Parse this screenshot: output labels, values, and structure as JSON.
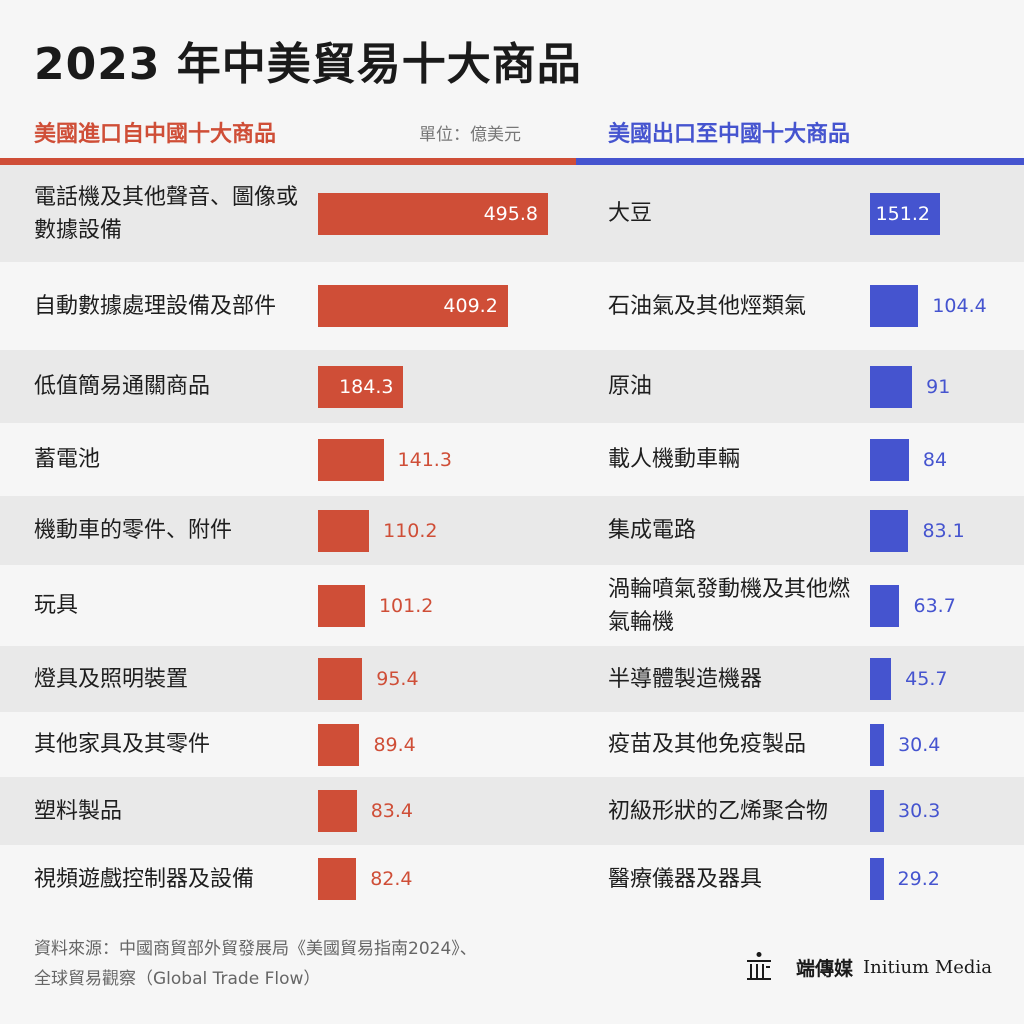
{
  "colors": {
    "import": "#cf4e37",
    "export": "#4554cf"
  },
  "title": "2023 年中美貿易十大商品",
  "unit": "單位：億美元",
  "chart_data": [
    {
      "type": "bar",
      "title": "美國進口自中國十大商品",
      "categories": [
        "電話機及其他聲音、圖像或數據設備",
        "自動數據處理設備及部件",
        "低值簡易通關商品",
        "蓄電池",
        "機動車的零件、附件",
        "玩具",
        "燈具及照明裝置",
        "其他家具及其零件",
        "塑料製品",
        "視頻遊戲控制器及設備"
      ],
      "values": [
        495.8,
        409.2,
        184.3,
        141.3,
        110.2,
        101.2,
        95.4,
        89.4,
        83.4,
        82.4
      ],
      "value_labels": [
        "495.8",
        "409.2",
        "184.3",
        "141.3",
        "110.2",
        "101.2",
        "95.4",
        "89.4",
        "83.4",
        "82.4"
      ],
      "orientation": "horizontal",
      "color": "#cf4e37"
    },
    {
      "type": "bar",
      "title": "美國出口至中國十大商品",
      "categories": [
        "大豆",
        "石油氣及其他烴類氣",
        "原油",
        "載人機動車輛",
        "集成電路",
        "渦輪噴氣發動機及其他燃氣輪機",
        "半導體製造機器",
        "疫苗及其他免疫製品",
        "初級形狀的乙烯聚合物",
        "醫療儀器及器具"
      ],
      "values": [
        151.2,
        104.4,
        91,
        84,
        83.1,
        63.7,
        45.7,
        30.4,
        30.3,
        29.2
      ],
      "value_labels": [
        "151.2",
        "104.4",
        "91",
        "84",
        "83.1",
        "63.7",
        "45.7",
        "30.4",
        "30.3",
        "29.2"
      ],
      "orientation": "horizontal",
      "color": "#4554cf"
    }
  ],
  "footer": {
    "line1": "資料來源：中國商貿部外貿發展局《美國貿易指南2024》、",
    "line2": "全球貿易觀察（Global Trade Flow）"
  },
  "brand": {
    "zh": "端傳媒",
    "en": "Initium Media"
  }
}
